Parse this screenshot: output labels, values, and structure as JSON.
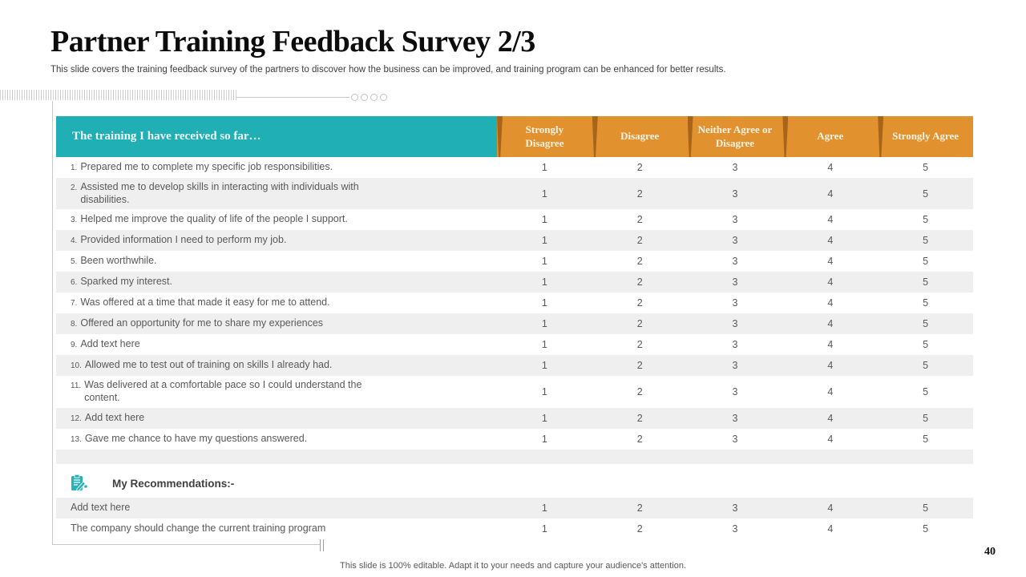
{
  "slide": {
    "title": "Partner Training Feedback Survey 2/3",
    "subtitle": "This slide covers the training feedback survey of the partners to discover how the business can be improved, and training program can be enhanced for better results.",
    "page_number": "40",
    "footer": "This slide is 100% editable. Adapt it to your needs and capture your audience's attention."
  },
  "table": {
    "statement_header": "The training I have received so far…",
    "columns": [
      "Strongly Disagree",
      "Disagree",
      "Neither Agree or Disagree",
      "Agree",
      "Strongly Agree"
    ],
    "scale": [
      "1",
      "2",
      "3",
      "4",
      "5"
    ],
    "rows": [
      {
        "n": "1.",
        "t": "Prepared me to complete my specific job responsibilities."
      },
      {
        "n": "2.",
        "t": "Assisted me to develop skills in interacting with individuals with disabilities."
      },
      {
        "n": "3.",
        "t": "Helped me improve the quality of life of the people I support."
      },
      {
        "n": "4.",
        "t": "Provided information I need to perform my job."
      },
      {
        "n": "5.",
        "t": "Been worthwhile."
      },
      {
        "n": "6.",
        "t": "Sparked my interest."
      },
      {
        "n": "7.",
        "t": "Was offered at a time that made it easy for me to attend."
      },
      {
        "n": "8.",
        "t": "Offered an opportunity for me to share my experiences"
      },
      {
        "n": "9.",
        "t": "Add text here"
      },
      {
        "n": "10.",
        "t": "Allowed me to test out of training on skills I already had."
      },
      {
        "n": "11.",
        "t": "Was delivered at a comfortable pace so I could understand the content."
      },
      {
        "n": "12.",
        "t": "Add text here"
      },
      {
        "n": "13.",
        "t": "Gave me chance to have my questions answered."
      }
    ],
    "recommendations": {
      "label": "My Recommendations:-",
      "icon": "clipboard-pencil-icon",
      "rows": [
        "Add text here",
        "The company should change the current training program"
      ]
    }
  },
  "colors": {
    "teal": "#20AFB4",
    "orange": "#E2912F",
    "orange-dark": "#A8651A",
    "row-gray": "#EFEFEF",
    "text-gray": "#595959"
  }
}
